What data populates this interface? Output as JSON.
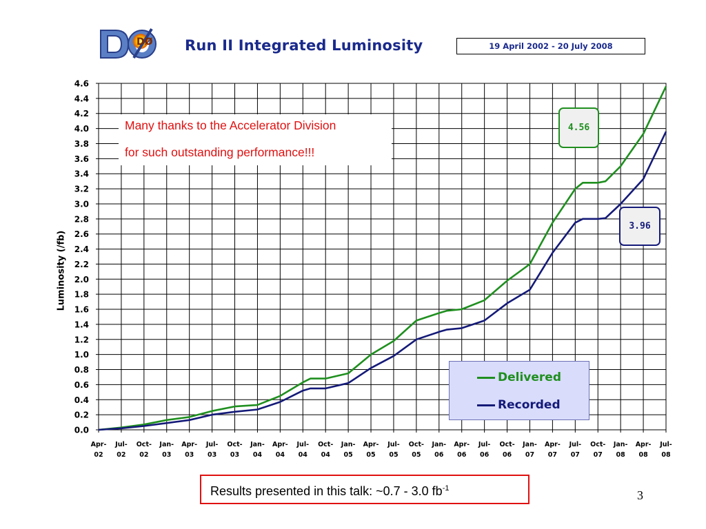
{
  "header": {
    "logo_text": "DØ",
    "title": "Run II Integrated Luminosity",
    "date_range": "19 April 2002 - 20 July 2008"
  },
  "annotation": {
    "line1": "Many thanks to the Accelerator Division",
    "line2": "for such outstanding performance!!!"
  },
  "callouts": {
    "delivered_value": "4.56",
    "recorded_value": "3.96"
  },
  "footer": {
    "results_text": "Results presented in this talk: ~0.7 - 3.0 fb",
    "results_sup": "-1",
    "page_number": "3"
  },
  "colors": {
    "delivered": "#1f8f1f",
    "recorded": "#141a78",
    "title": "#1a2a8c",
    "accent_red": "#e01010",
    "legend_bg": "#d9dcfb"
  },
  "chart_data": {
    "type": "line",
    "ylabel": "Luminosity (/fb)",
    "ylim": [
      0,
      4.6
    ],
    "ytick_step": 0.2,
    "grid": true,
    "legend_placement": "bottom-right",
    "x_tick_labels": [
      [
        "Apr-",
        "02"
      ],
      [
        "Jul-",
        "02"
      ],
      [
        "Oct-",
        "02"
      ],
      [
        "Jan-",
        "03"
      ],
      [
        "Apr-",
        "03"
      ],
      [
        "Jul-",
        "03"
      ],
      [
        "Oct-",
        "03"
      ],
      [
        "Jan-",
        "04"
      ],
      [
        "Apr-",
        "04"
      ],
      [
        "Jul-",
        "04"
      ],
      [
        "Oct-",
        "04"
      ],
      [
        "Jan-",
        "05"
      ],
      [
        "Apr-",
        "05"
      ],
      [
        "Jul-",
        "05"
      ],
      [
        "Oct-",
        "05"
      ],
      [
        "Jan-",
        "06"
      ],
      [
        "Apr-",
        "06"
      ],
      [
        "Jul-",
        "06"
      ],
      [
        "Oct-",
        "06"
      ],
      [
        "Jan-",
        "07"
      ],
      [
        "Apr-",
        "07"
      ],
      [
        "Jul-",
        "07"
      ],
      [
        "Oct-",
        "07"
      ],
      [
        "Jan-",
        "08"
      ],
      [
        "Apr-",
        "08"
      ],
      [
        "Jul-",
        "08"
      ]
    ],
    "series": [
      {
        "name": "Delivered",
        "x": [
          "2002-04",
          "2002-07",
          "2002-10",
          "2003-01",
          "2003-04",
          "2003-07",
          "2003-10",
          "2004-01",
          "2004-04",
          "2004-07",
          "2004-08",
          "2004-10",
          "2005-01",
          "2005-04",
          "2005-07",
          "2005-10",
          "2006-01",
          "2006-02",
          "2006-04",
          "2006-07",
          "2006-10",
          "2007-01",
          "2007-04",
          "2007-07",
          "2007-08",
          "2007-10",
          "2007-11",
          "2008-01",
          "2008-04",
          "2008-07"
        ],
        "y": [
          0.0,
          0.03,
          0.07,
          0.13,
          0.17,
          0.25,
          0.31,
          0.33,
          0.45,
          0.63,
          0.68,
          0.68,
          0.75,
          1.0,
          1.18,
          1.45,
          1.55,
          1.58,
          1.6,
          1.72,
          1.98,
          2.2,
          2.75,
          3.2,
          3.28,
          3.28,
          3.3,
          3.5,
          3.93,
          4.56
        ]
      },
      {
        "name": "Recorded",
        "x": [
          "2002-04",
          "2002-07",
          "2002-10",
          "2003-01",
          "2003-04",
          "2003-07",
          "2003-10",
          "2004-01",
          "2004-04",
          "2004-07",
          "2004-08",
          "2004-10",
          "2005-01",
          "2005-04",
          "2005-07",
          "2005-10",
          "2006-01",
          "2006-02",
          "2006-04",
          "2006-07",
          "2006-10",
          "2007-01",
          "2007-04",
          "2007-07",
          "2007-08",
          "2007-10",
          "2007-11",
          "2008-01",
          "2008-04",
          "2008-07"
        ],
        "y": [
          0.0,
          0.02,
          0.05,
          0.09,
          0.13,
          0.2,
          0.24,
          0.27,
          0.37,
          0.52,
          0.55,
          0.55,
          0.62,
          0.82,
          0.98,
          1.2,
          1.3,
          1.33,
          1.35,
          1.45,
          1.68,
          1.86,
          2.35,
          2.75,
          2.8,
          2.8,
          2.81,
          3.0,
          3.33,
          3.96
        ]
      }
    ]
  }
}
